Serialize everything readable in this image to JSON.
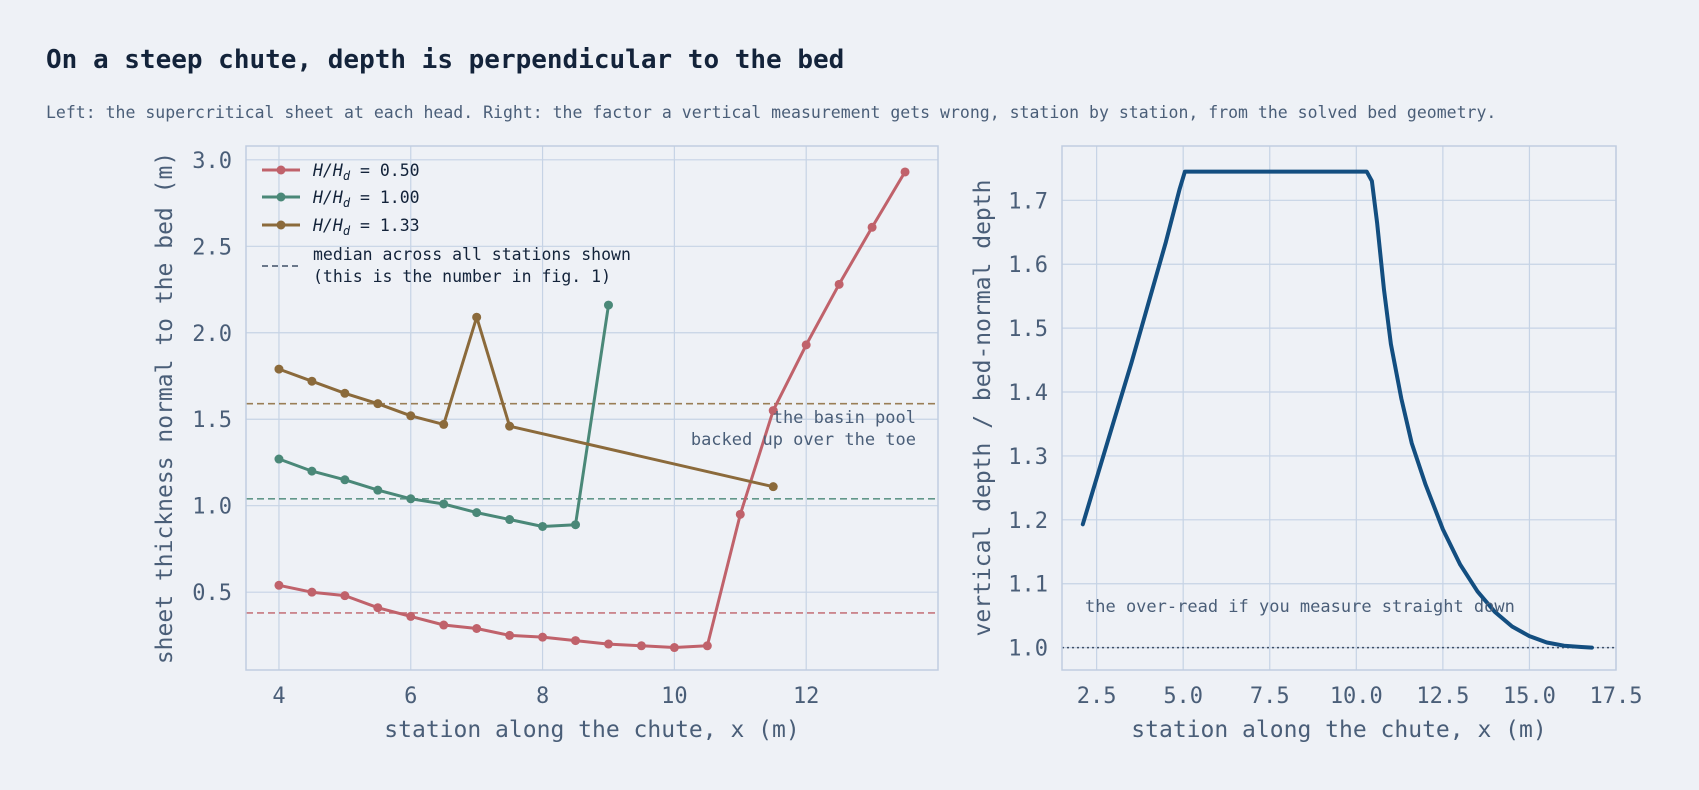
{
  "title": "On a steep chute, depth is perpendicular to the bed",
  "subtitle": "Left: the supercritical sheet at each head. Right: the factor a vertical measurement gets wrong, station by station, from the solved bed geometry.",
  "chart_data": [
    {
      "type": "line",
      "xlabel": "station along the chute,  x  (m)",
      "ylabel": "sheet thickness normal to the bed  (m)",
      "xlim": [
        3.5,
        14.0
      ],
      "ylim": [
        0.05,
        3.08
      ],
      "xticks": [
        4,
        6,
        8,
        10,
        12
      ],
      "yticks": [
        0.5,
        1.0,
        1.5,
        2.0,
        2.5,
        3.0
      ],
      "grid": true,
      "legend_position": "top-left",
      "series": [
        {
          "name": "H/H_d = 0.50",
          "color": "#c0626b",
          "x": [
            4.0,
            4.5,
            5.0,
            5.5,
            6.0,
            6.5,
            7.0,
            7.5,
            8.0,
            8.5,
            9.0,
            9.5,
            10.0,
            10.5,
            11.0,
            11.5,
            12.0,
            12.5,
            13.0,
            13.5
          ],
          "y": [
            0.54,
            0.5,
            0.48,
            0.41,
            0.36,
            0.31,
            0.29,
            0.25,
            0.24,
            0.22,
            0.2,
            0.19,
            0.18,
            0.19,
            0.95,
            1.55,
            1.93,
            2.28,
            2.61,
            2.93
          ],
          "median": 0.38
        },
        {
          "name": "H/H_d = 1.00",
          "color": "#4a8878",
          "x": [
            4.0,
            4.5,
            5.0,
            5.5,
            6.0,
            6.5,
            7.0,
            7.5,
            8.0,
            8.5,
            9.0
          ],
          "y": [
            1.27,
            1.2,
            1.15,
            1.09,
            1.04,
            1.01,
            0.96,
            0.92,
            0.88,
            0.89,
            2.16
          ],
          "median": 1.04
        },
        {
          "name": "H/H_d = 1.33",
          "color": "#8b6a3b",
          "x": [
            4.0,
            4.5,
            5.0,
            5.5,
            6.0,
            6.5,
            7.0,
            7.5,
            11.5
          ],
          "y": [
            1.79,
            1.72,
            1.65,
            1.59,
            1.52,
            1.47,
            2.09,
            1.46,
            1.11
          ],
          "median": 1.59
        }
      ],
      "legend_prefix": "H/H",
      "legend_subscript": "d",
      "legend_values": [
        " = 0.50",
        " = 1.00",
        " = 1.33"
      ],
      "median_legend_line1": "median across all stations shown",
      "median_legend_line2": "(this is the number in fig. 1)",
      "annotation_line1": "the basin pool",
      "annotation_line2": "backed up over the toe"
    },
    {
      "type": "line",
      "xlabel": "station along the chute,  x  (m)",
      "ylabel": "vertical depth / bed-normal depth",
      "xlim": [
        1.5,
        17.5
      ],
      "ylim": [
        0.965,
        1.785
      ],
      "xticks": [
        2.5,
        5.0,
        7.5,
        10.0,
        12.5,
        15.0,
        17.5
      ],
      "yticks": [
        1.0,
        1.1,
        1.2,
        1.3,
        1.4,
        1.5,
        1.6,
        1.7
      ],
      "grid": true,
      "series": [
        {
          "color": "#134e80",
          "x": [
            2.1,
            2.5,
            3.0,
            3.5,
            4.0,
            4.5,
            4.9,
            5.05,
            10.3,
            10.45,
            10.6,
            10.8,
            11.0,
            11.3,
            11.6,
            12.0,
            12.5,
            13.0,
            13.5,
            14.0,
            14.5,
            15.0,
            15.5,
            16.0,
            16.5,
            16.8
          ],
          "y": [
            1.193,
            1.265,
            1.355,
            1.445,
            1.54,
            1.635,
            1.718,
            1.745,
            1.745,
            1.73,
            1.665,
            1.56,
            1.475,
            1.39,
            1.32,
            1.255,
            1.185,
            1.13,
            1.088,
            1.056,
            1.033,
            1.018,
            1.008,
            1.003,
            1.001,
            1.0
          ]
        }
      ],
      "reference_y": 1.0,
      "annotation": "the over-read if you measure straight down"
    }
  ]
}
